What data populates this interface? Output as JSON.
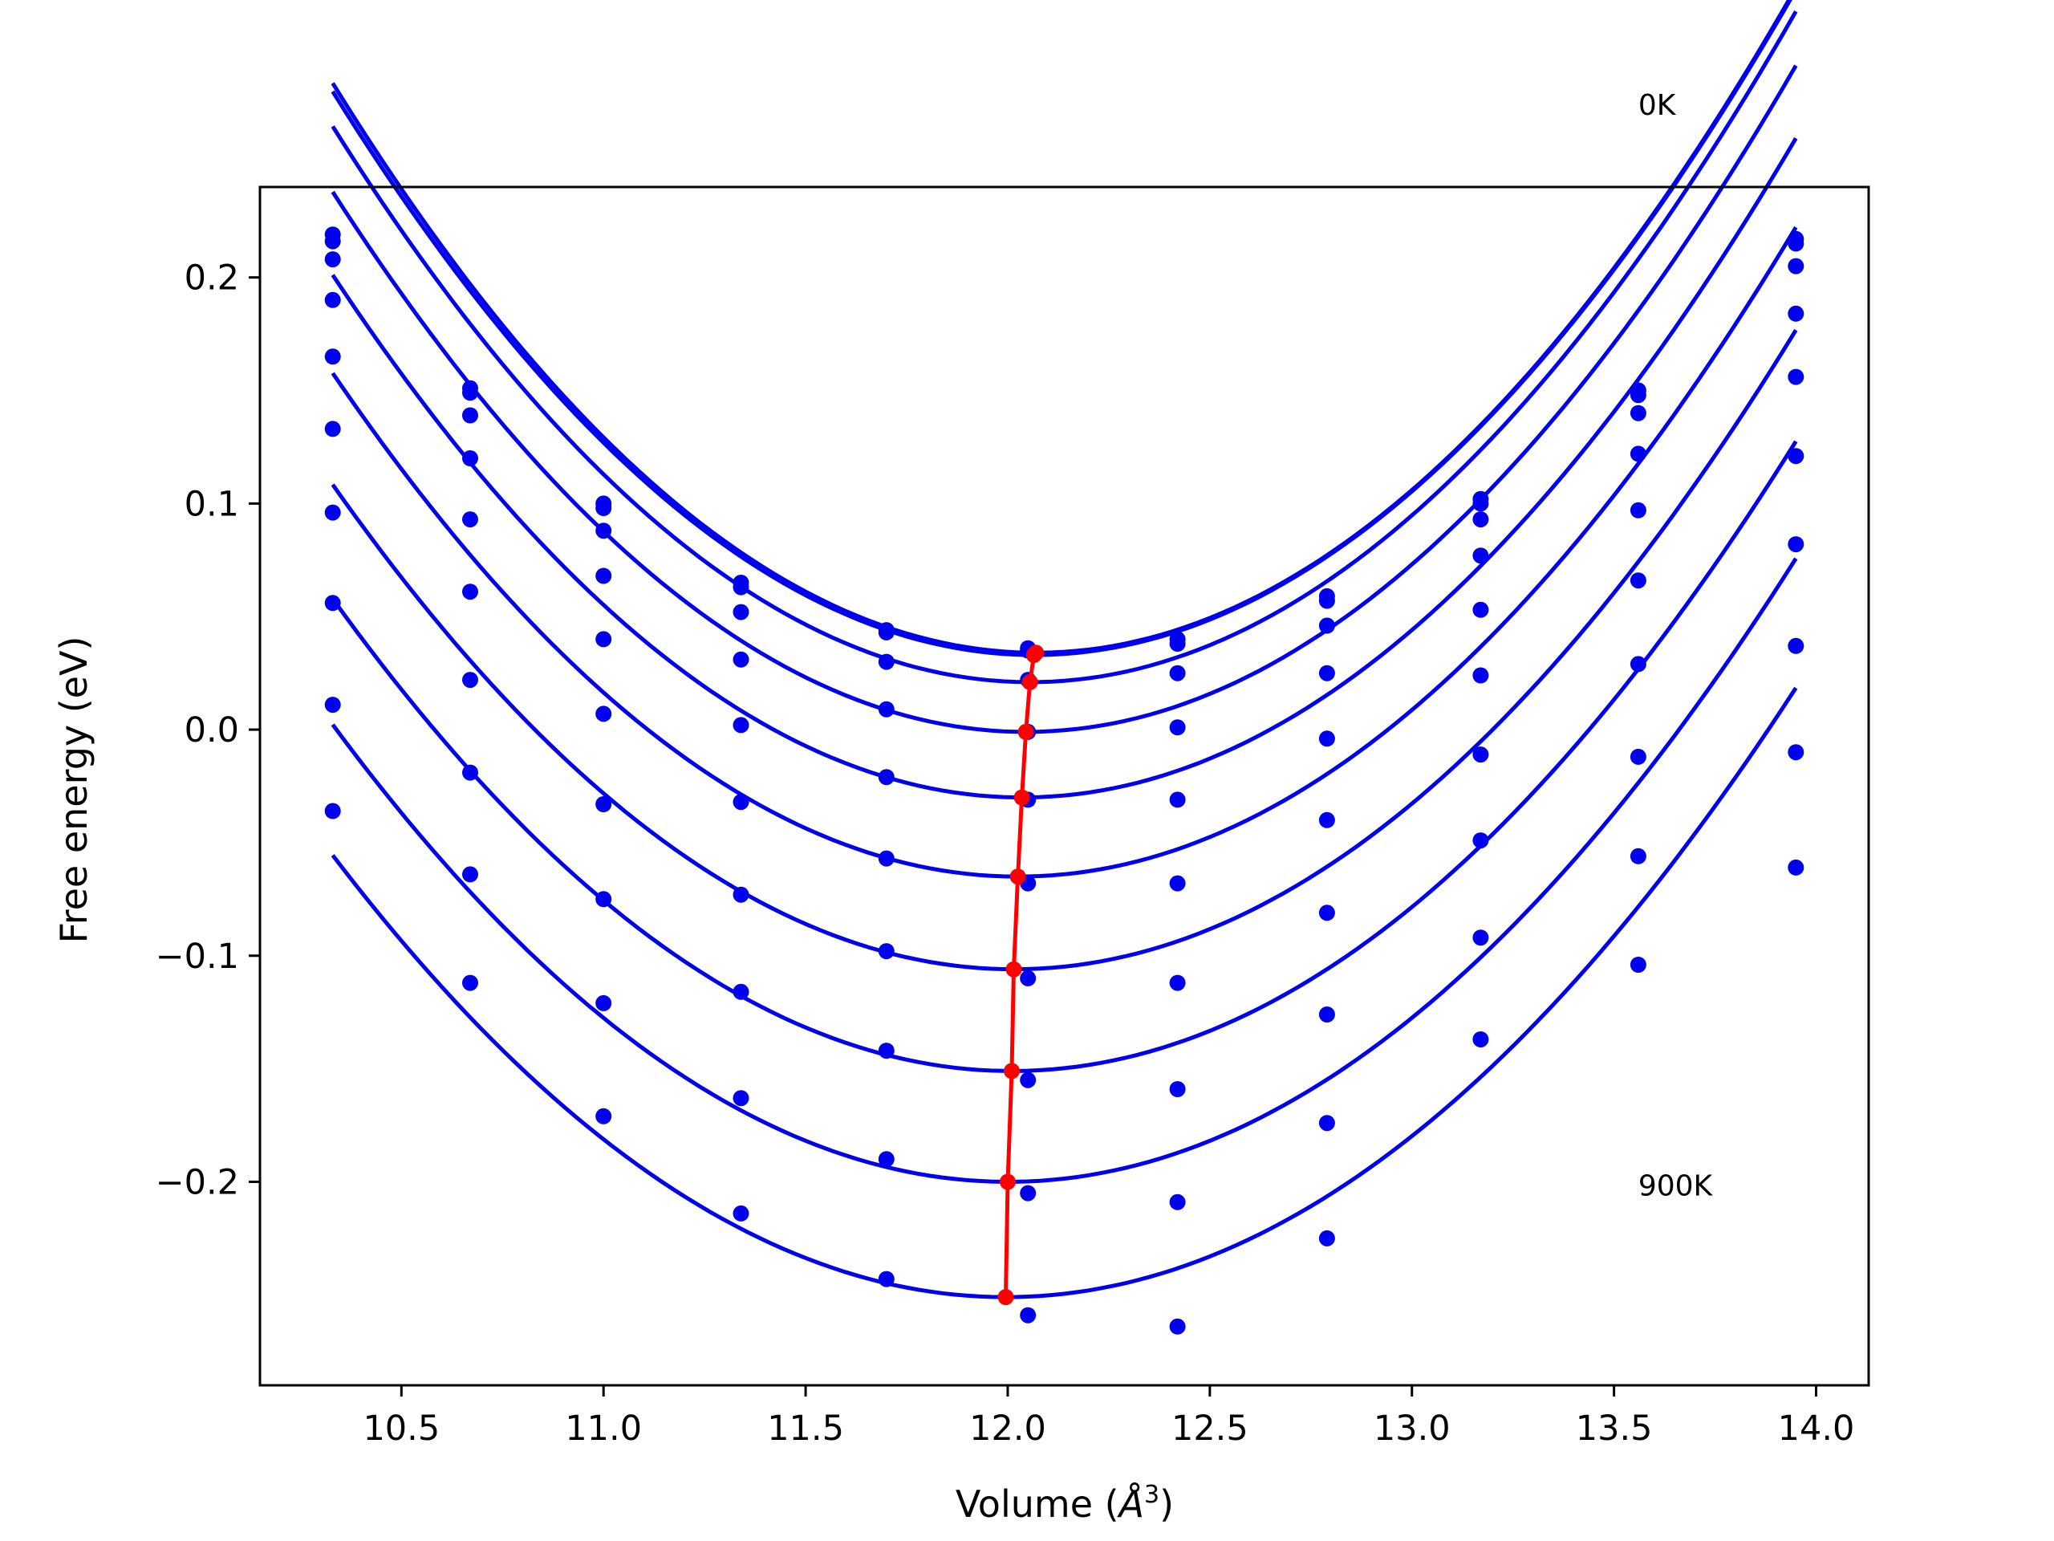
{
  "chart_data": {
    "type": "scatter",
    "title": "",
    "xlabel": "Volume (",
    "xlabel_symbol": "Å",
    "xlabel_exp": "3",
    "xlabel_close": ")",
    "ylabel": "Free energy (eV)",
    "xlim": [
      10.15,
      14.13
    ],
    "ylim": [
      -0.29,
      0.24
    ],
    "xticks": [
      10.5,
      11.0,
      11.5,
      12.0,
      12.5,
      13.0,
      13.5,
      14.0
    ],
    "xtick_labels": [
      "10.5",
      "11.0",
      "11.5",
      "12.0",
      "12.5",
      "13.0",
      "13.5",
      "14.0"
    ],
    "yticks": [
      -0.2,
      -0.1,
      0.0,
      0.1,
      0.2
    ],
    "ytick_labels": [
      "−0.2",
      "−0.1",
      "0.0",
      "0.1",
      "0.2"
    ],
    "grid": false,
    "annotations": [
      {
        "text": "0K",
        "x": 13.56,
        "y": 0.272
      },
      {
        "text": "900K",
        "x": 13.56,
        "y": -0.206
      }
    ],
    "volumes": [
      10.33,
      10.67,
      11.0,
      11.34,
      11.7,
      12.05,
      12.42,
      12.79,
      13.17,
      13.56,
      13.95
    ],
    "point_color": "#0000ee",
    "curve_color": "#0000ee",
    "min_line_color": "#ff0000",
    "series": [
      {
        "points": [
          0.219,
          0.151,
          0.1,
          0.065,
          0.044,
          0.036,
          0.04,
          0.059,
          0.102,
          0.15,
          0.217
        ],
        "curve": {
          "a": 0.0832,
          "x0": 12.07,
          "c": 0.034
        }
      },
      {
        "points": [
          0.216,
          0.149,
          0.098,
          0.063,
          0.043,
          0.035,
          0.038,
          0.057,
          0.1,
          0.148,
          0.215
        ],
        "curve": {
          "a": 0.0828,
          "x0": 12.065,
          "c": 0.033
        }
      },
      {
        "points": [
          0.208,
          0.139,
          0.088,
          0.052,
          0.03,
          0.022,
          0.025,
          0.046,
          0.093,
          0.14,
          0.205
        ],
        "curve": {
          "a": 0.0826,
          "x0": 12.055,
          "c": 0.021
        }
      },
      {
        "points": [
          0.19,
          0.12,
          0.068,
          0.031,
          0.009,
          -0.001,
          0.001,
          0.025,
          0.077,
          0.122,
          0.184
        ],
        "curve": {
          "a": 0.0812,
          "x0": 12.045,
          "c": -0.001
        }
      },
      {
        "points": [
          0.165,
          0.093,
          0.04,
          0.002,
          -0.021,
          -0.031,
          -0.031,
          -0.004,
          0.053,
          0.097,
          0.156
        ],
        "curve": {
          "a": 0.0795,
          "x0": 12.035,
          "c": -0.03
        }
      },
      {
        "points": [
          0.133,
          0.061,
          0.007,
          -0.032,
          -0.057,
          -0.068,
          -0.068,
          -0.04,
          0.024,
          0.066,
          0.121
        ],
        "curve": {
          "a": 0.0775,
          "x0": 12.025,
          "c": -0.065
        }
      },
      {
        "points": [
          0.096,
          0.022,
          -0.033,
          -0.073,
          -0.098,
          -0.11,
          -0.112,
          -0.081,
          -0.011,
          0.029,
          0.082
        ],
        "curve": {
          "a": 0.0755,
          "x0": 12.015,
          "c": -0.106
        }
      },
      {
        "points": [
          0.056,
          -0.019,
          -0.075,
          -0.116,
          -0.142,
          -0.155,
          -0.159,
          -0.126,
          -0.049,
          -0.012,
          0.037
        ],
        "curve": {
          "a": 0.074,
          "x0": 12.01,
          "c": -0.151
        }
      },
      {
        "points": [
          0.011,
          -0.064,
          -0.121,
          -0.163,
          -0.19,
          -0.205,
          -0.209,
          -0.174,
          -0.092,
          -0.056,
          -0.01
        ],
        "curve": {
          "a": 0.0725,
          "x0": 12.0,
          "c": -0.2
        }
      },
      {
        "points": [
          -0.036,
          -0.112,
          -0.171,
          -0.214,
          -0.243,
          -0.259,
          -0.264,
          -0.225,
          -0.137,
          -0.104,
          -0.061
        ],
        "curve": {
          "a": 0.0705,
          "x0": 11.995,
          "c": -0.251
        }
      }
    ],
    "minima": {
      "x": [
        12.07,
        12.065,
        12.055,
        12.045,
        12.035,
        12.025,
        12.015,
        12.01,
        12.0,
        11.995
      ],
      "y": [
        0.034,
        0.033,
        0.021,
        -0.001,
        -0.03,
        -0.065,
        -0.106,
        -0.151,
        -0.2,
        -0.251
      ]
    }
  }
}
